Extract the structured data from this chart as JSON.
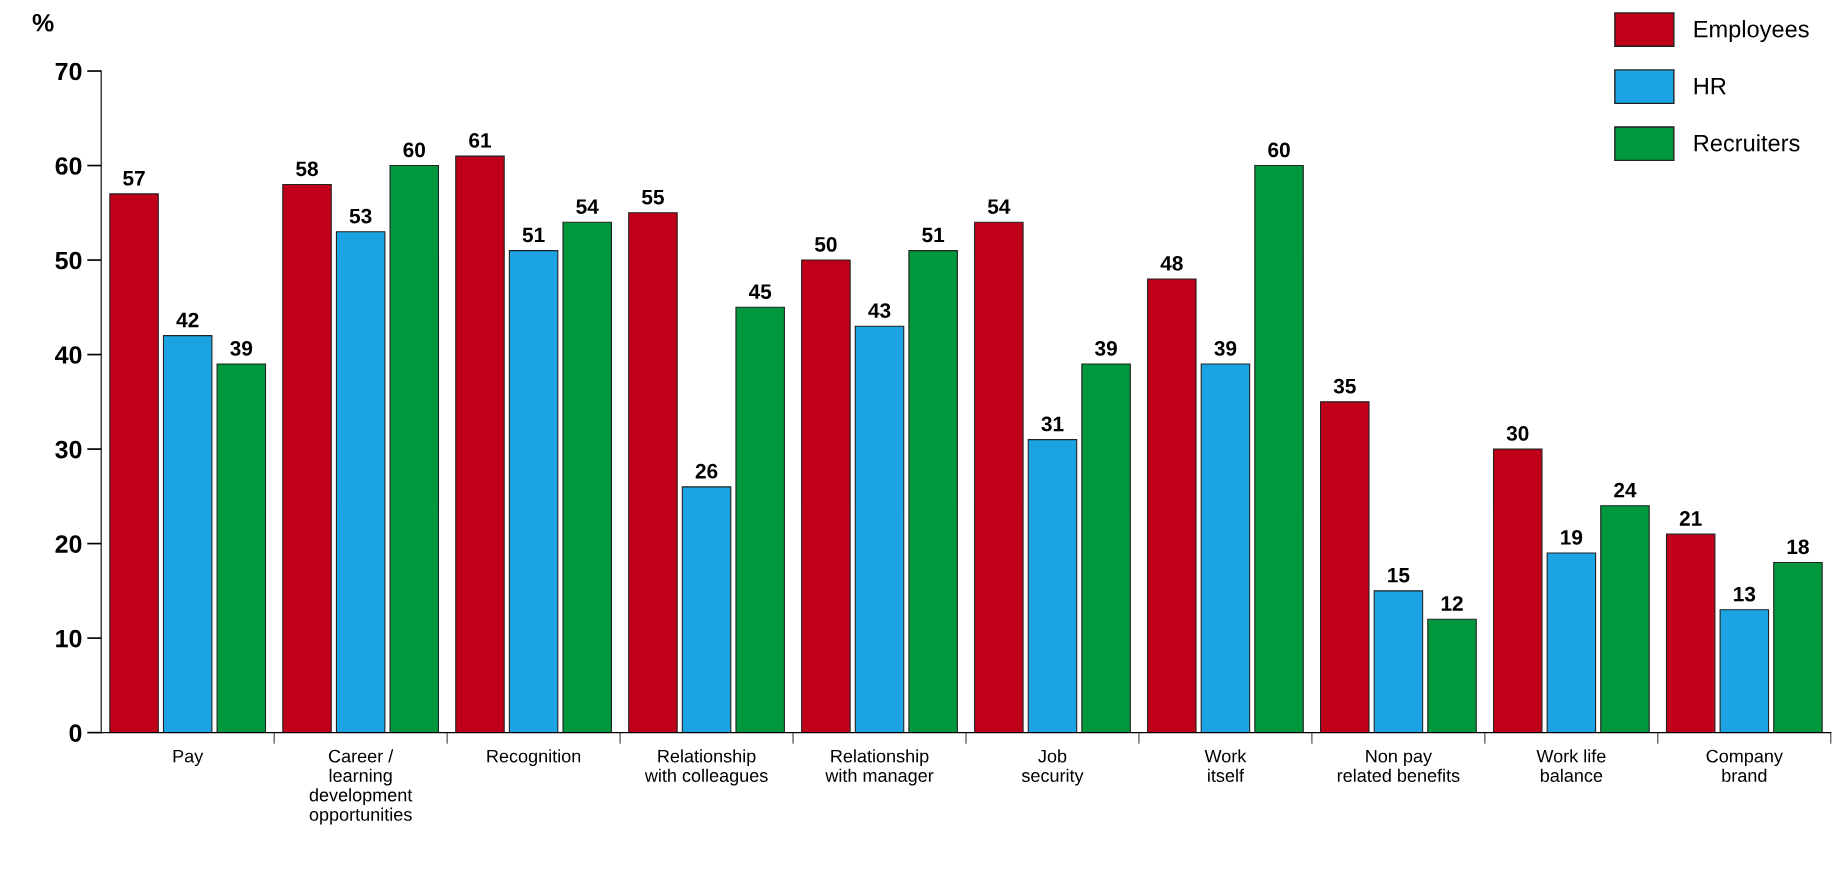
{
  "chart_data": {
    "type": "bar",
    "ylabel": "%",
    "categories": [
      "Pay",
      "Career /\nlearning\ndevelopment\nopportunities",
      "Recognition",
      "Relationship\nwith colleagues",
      "Relationship\nwith manager",
      "Job\nsecurity",
      "Work\nitself",
      "Non pay\nrelated benefits",
      "Work life\nbalance",
      "Company\nbrand"
    ],
    "series": [
      {
        "name": "Employees",
        "color": "#c00018",
        "values": [
          57,
          58,
          61,
          55,
          50,
          54,
          48,
          35,
          30,
          21
        ]
      },
      {
        "name": "HR",
        "color": "#1ba3e3",
        "values": [
          42,
          53,
          51,
          26,
          43,
          31,
          39,
          15,
          19,
          13
        ]
      },
      {
        "name": "Recruiters",
        "color": "#00973d",
        "values": [
          39,
          60,
          54,
          45,
          51,
          39,
          60,
          12,
          24,
          18
        ]
      }
    ],
    "ylim": [
      0,
      70
    ],
    "yticks": [
      0,
      10,
      20,
      30,
      40,
      50,
      60,
      70
    ],
    "data_labels": true,
    "grid": false,
    "legend": "top right"
  }
}
